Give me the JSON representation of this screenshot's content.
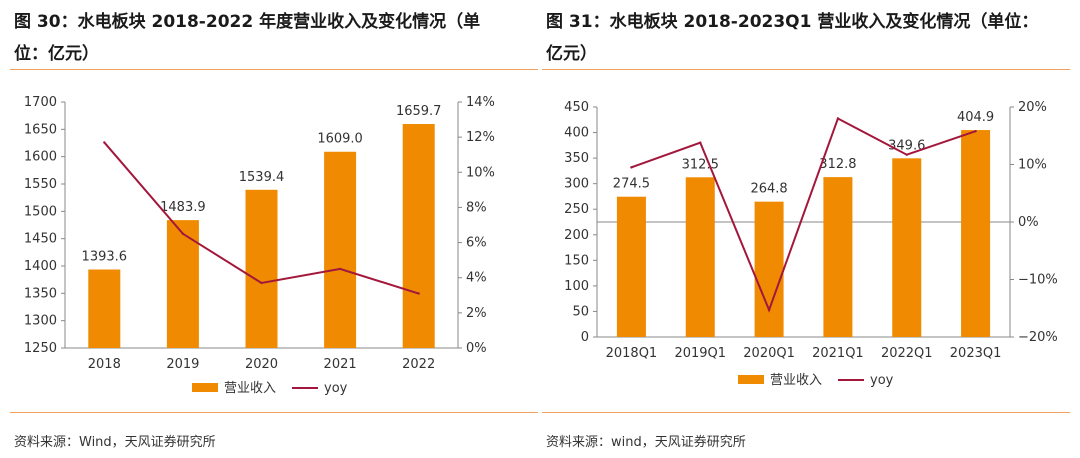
{
  "colors": {
    "bar": "#F08A00",
    "line": "#A3173C",
    "rule": "#F0A060"
  },
  "left": {
    "title": "图 30：水电板块 2018-2022 年度营业收入及变化情况（单位：亿元）",
    "source": "资料来源：Wind，天风证券研究所"
  },
  "right": {
    "title": "图 31：水电板块 2018-2023Q1 营业收入及变化情况（单位：亿元）",
    "source": "资料来源：wind，天风证券研究所"
  },
  "chart_data": [
    {
      "type": "bar",
      "title": "图 30：水电板块 2018-2022 年度营业收入及变化情况（单位：亿元）",
      "categories": [
        "2018",
        "2019",
        "2020",
        "2021",
        "2022"
      ],
      "series": [
        {
          "name": "营业收入",
          "type": "bar",
          "axis": "left",
          "values": [
            1393.6,
            1483.9,
            1539.4,
            1609.0,
            1659.7
          ]
        },
        {
          "name": "yoy",
          "type": "line",
          "axis": "right",
          "values": [
            11.7,
            6.5,
            3.7,
            4.5,
            3.1
          ]
        }
      ],
      "bar_labels": [
        "1393.6",
        "1483.9",
        "1539.4",
        "1609.0",
        "1659.7"
      ],
      "ylim": [
        1250,
        1700
      ],
      "yticks": [
        "1250",
        "1300",
        "1350",
        "1400",
        "1450",
        "1500",
        "1550",
        "1600",
        "1650",
        "1700"
      ],
      "y2lim": [
        0,
        14
      ],
      "y2ticks": [
        "0%",
        "2%",
        "4%",
        "6%",
        "8%",
        "10%",
        "12%",
        "14%"
      ],
      "legend": [
        "营业收入",
        "yoy"
      ],
      "legend_position": "bottom"
    },
    {
      "type": "bar",
      "title": "图 31：水电板块 2018-2023Q1 营业收入及变化情况（单位：亿元）",
      "categories": [
        "2018Q1",
        "2019Q1",
        "2020Q1",
        "2021Q1",
        "2022Q1",
        "2023Q1"
      ],
      "series": [
        {
          "name": "营业收入",
          "type": "bar",
          "axis": "left",
          "values": [
            274.5,
            312.5,
            264.8,
            312.8,
            349.6,
            404.9
          ]
        },
        {
          "name": "yoy",
          "type": "line",
          "axis": "right",
          "values": [
            9.5,
            13.8,
            -15.3,
            18.0,
            11.7,
            15.8
          ]
        }
      ],
      "bar_labels": [
        "274.5",
        "312.5",
        "264.8",
        "312.8",
        "349.6",
        "404.9"
      ],
      "ylim": [
        0,
        450
      ],
      "yticks": [
        "0",
        "50",
        "100",
        "150",
        "200",
        "250",
        "300",
        "350",
        "400",
        "450"
      ],
      "y2lim": [
        -20,
        20
      ],
      "y2ticks": [
        "−20%",
        "−10%",
        "0%",
        "10%",
        "20%"
      ],
      "legend": [
        "营业收入",
        "yoy"
      ],
      "legend_position": "bottom"
    }
  ]
}
